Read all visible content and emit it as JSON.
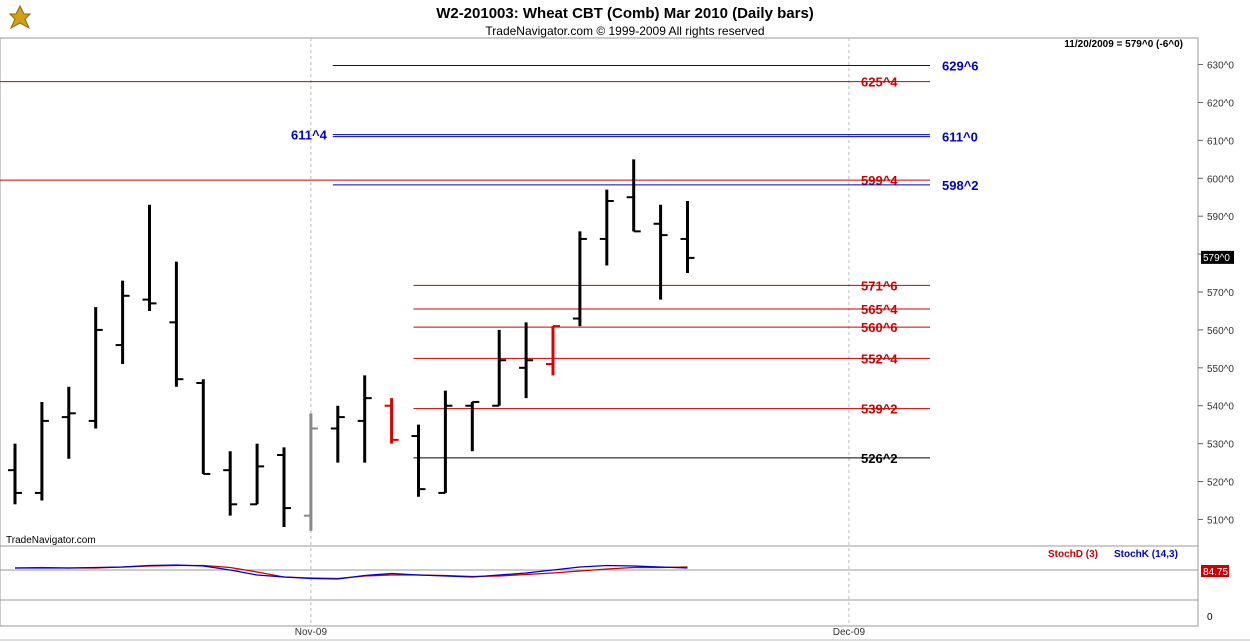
{
  "chart_data": {
    "type": "ohlc",
    "title": "W2-201003:  Wheat CBT (Comb) Mar 2010  (Daily bars)",
    "subtitle": "TradeNavigator.com © 1999-2009 All rights reserved",
    "watermark": "TradeNavigator.com",
    "status": "11/20/2009 = 579^0 (-6^0)",
    "last_price_label": "579^0",
    "ylim": [
      503,
      637
    ],
    "y_ticks": [
      "510^0",
      "520^0",
      "530^0",
      "540^0",
      "550^0",
      "560^0",
      "570^0",
      "580^0",
      "590^0",
      "600^0",
      "610^0",
      "620^0",
      "630^0"
    ],
    "y_tick_values": [
      510,
      520,
      530,
      540,
      550,
      560,
      570,
      580,
      590,
      600,
      610,
      620,
      630
    ],
    "x_labels": [
      {
        "text": "Nov-09",
        "bar": 11
      },
      {
        "text": "Dec-09",
        "bar": 31
      }
    ],
    "bars": [
      {
        "o": 523,
        "h": 530,
        "l": 514,
        "c": 517
      },
      {
        "o": 517,
        "h": 541,
        "l": 515,
        "c": 536
      },
      {
        "o": 537,
        "h": 545,
        "l": 526,
        "c": 538
      },
      {
        "o": 536,
        "h": 566,
        "l": 534,
        "c": 560
      },
      {
        "o": 556,
        "h": 573,
        "l": 551,
        "c": 569
      },
      {
        "o": 568,
        "h": 593,
        "l": 565,
        "c": 567
      },
      {
        "o": 562,
        "h": 578,
        "l": 545,
        "c": 547
      },
      {
        "o": 546,
        "h": 547,
        "l": 522,
        "c": 522
      },
      {
        "o": 523,
        "h": 528,
        "l": 511,
        "c": 514
      },
      {
        "o": 514,
        "h": 530,
        "l": 514,
        "c": 524
      },
      {
        "o": 527,
        "h": 529,
        "l": 508,
        "c": 513
      },
      {
        "o": 511,
        "h": 538,
        "l": 507,
        "c": 534
      },
      {
        "o": 534,
        "h": 540,
        "l": 525,
        "c": 537
      },
      {
        "o": 536,
        "h": 548,
        "l": 525,
        "c": 542
      },
      {
        "o": 540,
        "h": 542,
        "l": 530,
        "c": 531
      },
      {
        "o": 532,
        "h": 535,
        "l": 516,
        "c": 518
      },
      {
        "o": 517,
        "h": 544,
        "l": 517,
        "c": 540
      },
      {
        "o": 540,
        "h": 541,
        "l": 528,
        "c": 541
      },
      {
        "o": 540,
        "h": 560,
        "l": 540,
        "c": 552
      },
      {
        "o": 550,
        "h": 562,
        "l": 542,
        "c": 552
      },
      {
        "o": 551,
        "h": 561,
        "l": 548,
        "c": 561
      },
      {
        "o": 563,
        "h": 586,
        "l": 561,
        "c": 584
      },
      {
        "o": 584,
        "h": 597,
        "l": 577,
        "c": 594
      },
      {
        "o": 595,
        "h": 605,
        "l": 586,
        "c": 586
      },
      {
        "o": 588,
        "h": 593,
        "l": 568,
        "c": 585
      },
      {
        "o": 584,
        "h": 594,
        "l": 575,
        "c": 579
      }
    ],
    "bar_colors": [
      "black",
      "black",
      "black",
      "black",
      "black",
      "black",
      "black",
      "black",
      "black",
      "black",
      "black",
      "gray",
      "black",
      "black",
      "red",
      "black",
      "black",
      "black",
      "black",
      "black",
      "red",
      "black",
      "black",
      "black",
      "black",
      "black"
    ],
    "levels": [
      {
        "label": "629^6",
        "value": 629.75,
        "color": "#0000cc",
        "from_bar": 12,
        "label_pos": "far"
      },
      {
        "label": "625^4",
        "value": 625.5,
        "color": "#cc0000",
        "from_bar": -1,
        "label_pos": "near"
      },
      {
        "label": "611^4",
        "value": 611.5,
        "color": "#0000cc",
        "from_bar": 12,
        "label_pos": "left"
      },
      {
        "label": "611^0",
        "value": 611.0,
        "color": "#0000cc",
        "from_bar": 12,
        "label_pos": "far"
      },
      {
        "label": "599^4",
        "value": 599.5,
        "color": "#cc0000",
        "from_bar": -1,
        "label_pos": "near"
      },
      {
        "label": "598^2",
        "value": 598.25,
        "color": "#0000cc",
        "from_bar": 12,
        "label_pos": "far"
      },
      {
        "label": "571^6",
        "value": 571.75,
        "color": "#cc0000",
        "from_bar": 15,
        "label_pos": "near"
      },
      {
        "label": "565^4",
        "value": 565.5,
        "color": "#cc0000",
        "from_bar": 15,
        "label_pos": "near"
      },
      {
        "label": "560^6",
        "value": 560.75,
        "color": "#cc0000",
        "from_bar": 15,
        "label_pos": "near"
      },
      {
        "label": "552^4",
        "value": 552.5,
        "color": "#cc0000",
        "from_bar": 15,
        "label_pos": "near"
      },
      {
        "label": "539^2",
        "value": 539.25,
        "color": "#cc0000",
        "from_bar": 15,
        "label_pos": "near"
      },
      {
        "label": "526^2",
        "value": 526.25,
        "color": "#000000",
        "from_bar": 15,
        "label_pos": "near"
      }
    ],
    "stochastic": {
      "legend": [
        {
          "name": "StochD (3)",
          "color": "#cc0000"
        },
        {
          "name": "StochK (14,3)",
          "color": "#0000cc"
        }
      ],
      "value_label": "84.75",
      "zero_label": "0",
      "ylim": [
        0,
        100
      ],
      "d": [
        84,
        85,
        84,
        84,
        86,
        88,
        89,
        89,
        85,
        76,
        66,
        64,
        63,
        68,
        70,
        70,
        69,
        67,
        68,
        71,
        74,
        78,
        82,
        85,
        85,
        86
      ],
      "k": [
        84,
        84,
        84,
        85,
        86,
        89,
        90,
        88,
        80,
        70,
        66,
        63,
        62,
        69,
        73,
        70,
        68,
        66,
        70,
        74,
        80,
        86,
        89,
        88,
        86,
        84
      ]
    }
  }
}
